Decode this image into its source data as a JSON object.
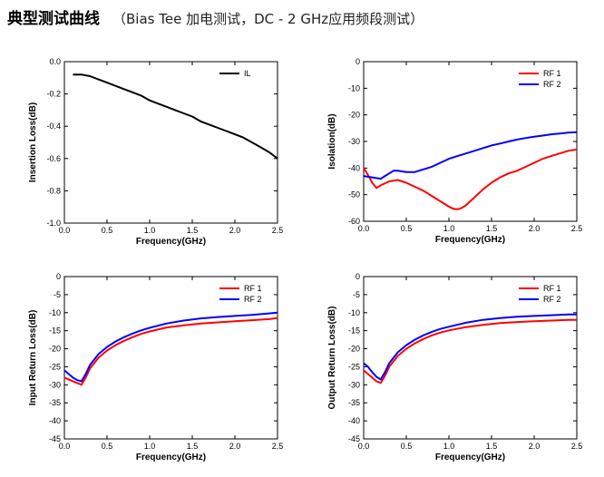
{
  "header": {
    "title": "典型测试曲线",
    "subtitle": "（Bias Tee 加电测试，DC - 2 GHz应用频段测试）"
  },
  "chart_data": [
    {
      "type": "line",
      "title": "",
      "xlabel": "Frequency(GHz)",
      "ylabel": "Insertion Loss(dB)",
      "xlim": [
        0.0,
        2.5
      ],
      "ylim": [
        -1.0,
        0.0
      ],
      "xticks": [
        "0.0",
        "0.5",
        "1.0",
        "1.5",
        "2.0",
        "2.5"
      ],
      "yticks": [
        "0.0",
        "-0.2",
        "-0.4",
        "-0.6",
        "-0.8",
        "-1.0"
      ],
      "legend_position": "top-right",
      "series": [
        {
          "name": "IL",
          "color": "#000000",
          "x": [
            0.1,
            0.15,
            0.2,
            0.3,
            0.4,
            0.5,
            0.6,
            0.7,
            0.8,
            0.9,
            1.0,
            1.1,
            1.2,
            1.3,
            1.4,
            1.5,
            1.6,
            1.7,
            1.8,
            1.9,
            2.0,
            2.1,
            2.2,
            2.3,
            2.4,
            2.5
          ],
          "y": [
            -0.08,
            -0.08,
            -0.08,
            -0.09,
            -0.11,
            -0.13,
            -0.15,
            -0.17,
            -0.19,
            -0.21,
            -0.24,
            -0.26,
            -0.28,
            -0.3,
            -0.32,
            -0.34,
            -0.37,
            -0.39,
            -0.41,
            -0.43,
            -0.45,
            -0.47,
            -0.5,
            -0.53,
            -0.56,
            -0.6
          ]
        }
      ]
    },
    {
      "type": "line",
      "title": "",
      "xlabel": "Frequency(GHz)",
      "ylabel": "Isolation(dB)",
      "xlim": [
        0.0,
        2.5
      ],
      "ylim": [
        -60,
        0
      ],
      "xticks": [
        "0.0",
        "0.5",
        "1.0",
        "1.5",
        "2.0",
        "2.5"
      ],
      "yticks": [
        "0",
        "-10",
        "-20",
        "-30",
        "-40",
        "-50",
        "-60"
      ],
      "legend_position": "top-right",
      "series": [
        {
          "name": "RF 1",
          "color": "#ff0000",
          "x": [
            0.0,
            0.05,
            0.1,
            0.15,
            0.2,
            0.3,
            0.4,
            0.5,
            0.6,
            0.7,
            0.8,
            0.9,
            1.0,
            1.05,
            1.1,
            1.15,
            1.2,
            1.3,
            1.4,
            1.5,
            1.6,
            1.7,
            1.8,
            1.9,
            2.0,
            2.1,
            2.2,
            2.3,
            2.4,
            2.5
          ],
          "y": [
            -40,
            -42.5,
            -45.5,
            -47.5,
            -46.5,
            -45,
            -44.5,
            -45.5,
            -47,
            -48.5,
            -50.5,
            -52.5,
            -54.5,
            -55.3,
            -55.5,
            -55,
            -54,
            -51,
            -48,
            -45.5,
            -43.5,
            -42,
            -41,
            -39.5,
            -38,
            -36.5,
            -35.5,
            -34.5,
            -33.5,
            -33
          ]
        },
        {
          "name": "RF 2",
          "color": "#0000ff",
          "x": [
            0.0,
            0.1,
            0.2,
            0.25,
            0.3,
            0.35,
            0.4,
            0.5,
            0.6,
            0.7,
            0.8,
            0.9,
            1.0,
            1.1,
            1.2,
            1.3,
            1.4,
            1.5,
            1.6,
            1.7,
            1.8,
            1.9,
            2.0,
            2.1,
            2.2,
            2.3,
            2.4,
            2.5
          ],
          "y": [
            -43,
            -43.5,
            -44,
            -43,
            -42,
            -41,
            -41,
            -41.5,
            -41.5,
            -40.5,
            -39.5,
            -38,
            -36.5,
            -35.5,
            -34.5,
            -33.5,
            -32.5,
            -31.5,
            -30.8,
            -30,
            -29.3,
            -28.7,
            -28.2,
            -27.8,
            -27.3,
            -27,
            -26.7,
            -26.5
          ]
        }
      ]
    },
    {
      "type": "line",
      "title": "",
      "xlabel": "Frequency(GHz)",
      "ylabel": "Input Return Loss(dB)",
      "xlim": [
        0.0,
        2.5
      ],
      "ylim": [
        -45,
        0
      ],
      "xticks": [
        "0.0",
        "0.5",
        "1.0",
        "1.5",
        "2.0",
        "2.5"
      ],
      "yticks": [
        "0",
        "-5",
        "-10",
        "-15",
        "-20",
        "-25",
        "-30",
        "-35",
        "-40",
        "-45"
      ],
      "legend_position": "top-right",
      "series": [
        {
          "name": "RF 1",
          "color": "#ff0000",
          "x": [
            0.0,
            0.05,
            0.1,
            0.15,
            0.2,
            0.25,
            0.3,
            0.4,
            0.5,
            0.6,
            0.7,
            0.8,
            0.9,
            1.0,
            1.2,
            1.4,
            1.6,
            1.8,
            2.0,
            2.2,
            2.4,
            2.5
          ],
          "y": [
            -28,
            -28.5,
            -29,
            -29.5,
            -30,
            -28,
            -25.5,
            -22.5,
            -20.5,
            -19,
            -17.8,
            -16.8,
            -15.9,
            -15.2,
            -14.1,
            -13.5,
            -13.0,
            -12.7,
            -12.4,
            -12.1,
            -11.8,
            -11.5
          ]
        },
        {
          "name": "RF 2",
          "color": "#0000ff",
          "x": [
            0.0,
            0.05,
            0.1,
            0.15,
            0.2,
            0.25,
            0.3,
            0.4,
            0.5,
            0.6,
            0.7,
            0.8,
            0.9,
            1.0,
            1.2,
            1.4,
            1.6,
            1.8,
            2.0,
            2.2,
            2.4,
            2.5
          ],
          "y": [
            -26,
            -27,
            -28,
            -28.7,
            -29,
            -27,
            -24.5,
            -21.5,
            -19.5,
            -18,
            -16.8,
            -15.8,
            -14.9,
            -14.2,
            -13.0,
            -12.2,
            -11.6,
            -11.2,
            -10.9,
            -10.6,
            -10.2,
            -10
          ]
        }
      ]
    },
    {
      "type": "line",
      "title": "",
      "xlabel": "Frequency(GHz)",
      "ylabel": "Output Return Loss(dB)",
      "xlim": [
        0.0,
        2.5
      ],
      "ylim": [
        -45,
        0
      ],
      "xticks": [
        "0.0",
        "0.5",
        "1.0",
        "1.5",
        "2.0",
        "2.5"
      ],
      "yticks": [
        "0",
        "-5",
        "-10",
        "-15",
        "-20",
        "-25",
        "-30",
        "-35",
        "-40",
        "-45"
      ],
      "legend_position": "top-right",
      "series": [
        {
          "name": "RF 1",
          "color": "#ff0000",
          "x": [
            0.0,
            0.05,
            0.1,
            0.15,
            0.2,
            0.25,
            0.3,
            0.4,
            0.5,
            0.6,
            0.7,
            0.8,
            0.9,
            1.0,
            1.2,
            1.4,
            1.6,
            1.8,
            2.0,
            2.2,
            2.4,
            2.5
          ],
          "y": [
            -26,
            -27,
            -28,
            -29,
            -29.5,
            -27.5,
            -25,
            -22,
            -20,
            -18.5,
            -17.3,
            -16.3,
            -15.5,
            -14.9,
            -14.0,
            -13.4,
            -12.9,
            -12.6,
            -12.4,
            -12.2,
            -12.0,
            -12
          ]
        },
        {
          "name": "RF 2",
          "color": "#0000ff",
          "x": [
            0.0,
            0.05,
            0.1,
            0.15,
            0.2,
            0.25,
            0.3,
            0.4,
            0.5,
            0.6,
            0.7,
            0.8,
            0.9,
            1.0,
            1.2,
            1.4,
            1.6,
            1.8,
            2.0,
            2.2,
            2.4,
            2.5
          ],
          "y": [
            -24,
            -25,
            -26.5,
            -27.8,
            -28.5,
            -26.5,
            -24,
            -21,
            -19,
            -17.5,
            -16.3,
            -15.3,
            -14.5,
            -13.9,
            -12.8,
            -12.0,
            -11.5,
            -11.1,
            -10.9,
            -10.7,
            -10.5,
            -10.5
          ]
        }
      ]
    }
  ]
}
